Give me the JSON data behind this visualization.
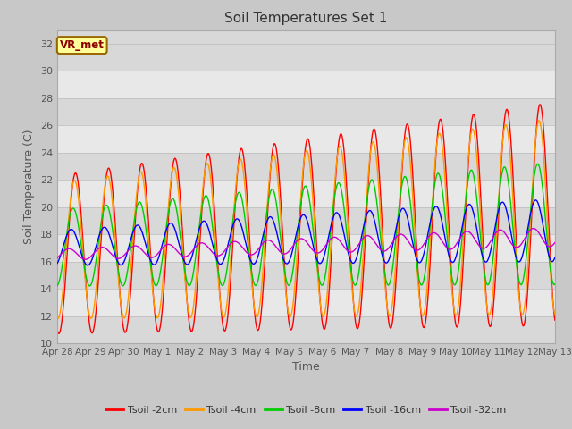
{
  "title": "Soil Temperatures Set 1",
  "xlabel": "Time",
  "ylabel": "Soil Temperature (C)",
  "ylim": [
    10,
    33
  ],
  "yticks": [
    10,
    12,
    14,
    16,
    18,
    20,
    22,
    24,
    26,
    28,
    30,
    32
  ],
  "label_text": "VR_met",
  "series_labels": [
    "Tsoil -2cm",
    "Tsoil -4cm",
    "Tsoil -8cm",
    "Tsoil -16cm",
    "Tsoil -32cm"
  ],
  "series_colors": [
    "#ff0000",
    "#ff9900",
    "#00cc00",
    "#0000ff",
    "#cc00cc"
  ],
  "fig_bg_color": "#c8c8c8",
  "plot_bg_color": "#d8d8d8",
  "band_color_light": "#e8e8e8",
  "tick_labels": [
    "Apr 28",
    "Apr 29",
    "Apr 30",
    "May 1",
    "May 2",
    "May 3",
    "May 4",
    "May 5",
    "May 6",
    "May 7",
    "May 8",
    "May 9",
    "May 10",
    "May 11",
    "May 12",
    "May 13"
  ],
  "tick_positions": [
    0,
    1,
    2,
    3,
    4,
    5,
    6,
    7,
    8,
    9,
    10,
    11,
    12,
    13,
    14,
    15
  ]
}
